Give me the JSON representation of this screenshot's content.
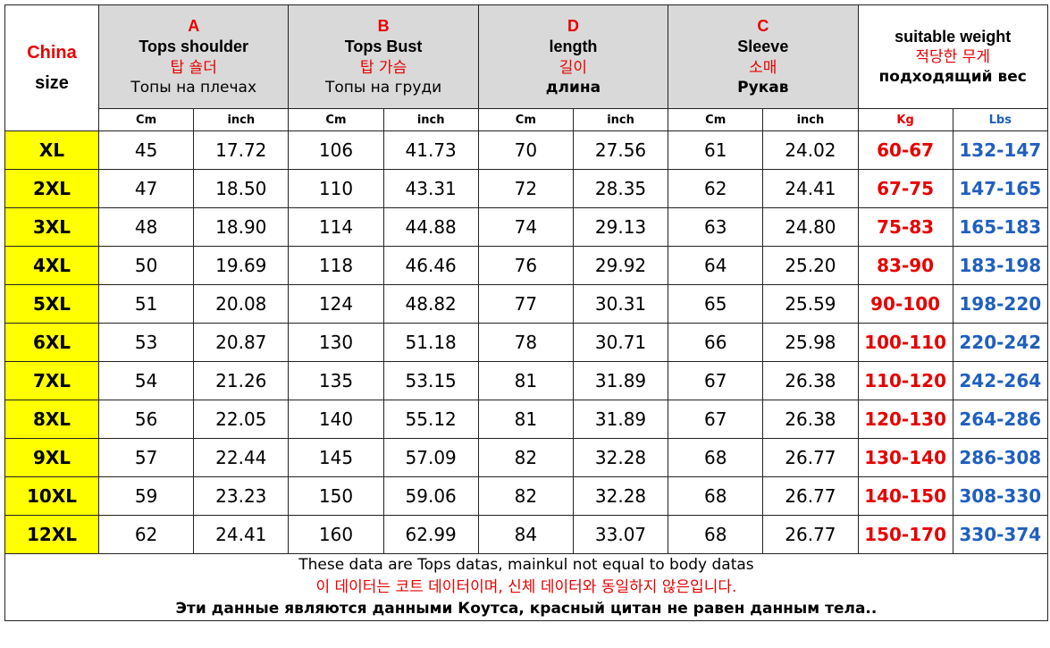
{
  "corner": {
    "line1": "China",
    "line2": "size"
  },
  "groups": [
    {
      "letter": "A",
      "en": "Tops  shoulder",
      "ko": "탑 숄더",
      "ru": "Топы на плечах",
      "units": [
        "Cm",
        "inch"
      ]
    },
    {
      "letter": "B",
      "en": "Tops  Bust",
      "ko": "탑 가슴",
      "ru": "Топы на груди",
      "units": [
        "Cm",
        "inch"
      ]
    },
    {
      "letter": "D",
      "en": "length",
      "ko": "길이",
      "ru": "длина",
      "units": [
        "Cm",
        "inch"
      ]
    },
    {
      "letter": "C",
      "en": "Sleeve",
      "ko": "소매",
      "ru": "Рукав",
      "units": [
        "Cm",
        "inch"
      ]
    },
    {
      "en": "suitable weight",
      "ko": "적당한 무게",
      "ru": "подходящий вес",
      "units": [
        "Kg",
        "Lbs"
      ]
    }
  ],
  "rows": [
    [
      "XL",
      "45",
      "17.72",
      "106",
      "41.73",
      "70",
      "27.56",
      "61",
      "24.02",
      "60-67",
      "132-147"
    ],
    [
      "2XL",
      "47",
      "18.50",
      "110",
      "43.31",
      "72",
      "28.35",
      "62",
      "24.41",
      "67-75",
      "147-165"
    ],
    [
      "3XL",
      "48",
      "18.90",
      "114",
      "44.88",
      "74",
      "29.13",
      "63",
      "24.80",
      "75-83",
      "165-183"
    ],
    [
      "4XL",
      "50",
      "19.69",
      "118",
      "46.46",
      "76",
      "29.92",
      "64",
      "25.20",
      "83-90",
      "183-198"
    ],
    [
      "5XL",
      "51",
      "20.08",
      "124",
      "48.82",
      "77",
      "30.31",
      "65",
      "25.59",
      "90-100",
      "198-220"
    ],
    [
      "6XL",
      "53",
      "20.87",
      "130",
      "51.18",
      "78",
      "30.71",
      "66",
      "25.98",
      "100-110",
      "220-242"
    ],
    [
      "7XL",
      "54",
      "21.26",
      "135",
      "53.15",
      "81",
      "31.89",
      "67",
      "26.38",
      "110-120",
      "242-264"
    ],
    [
      "8XL",
      "56",
      "22.05",
      "140",
      "55.12",
      "81",
      "31.89",
      "67",
      "26.38",
      "120-130",
      "264-286"
    ],
    [
      "9XL",
      "57",
      "22.44",
      "145",
      "57.09",
      "82",
      "32.28",
      "68",
      "26.77",
      "130-140",
      "286-308"
    ],
    [
      "10XL",
      "59",
      "23.23",
      "150",
      "59.06",
      "82",
      "32.28",
      "68",
      "26.77",
      "140-150",
      "308-330"
    ],
    [
      "12XL",
      "62",
      "24.41",
      "160",
      "62.99",
      "84",
      "33.07",
      "68",
      "26.77",
      "150-170",
      "330-374"
    ]
  ],
  "footer": [
    "These data are Tops datas, mainkul not equal to body datas",
    "이 데이터는 코트 데이터이며, 신체 데이터와 동일하지 않은입니다.",
    "Эти данные являются данными Коутса, красный цитан не равен данным тела.."
  ]
}
